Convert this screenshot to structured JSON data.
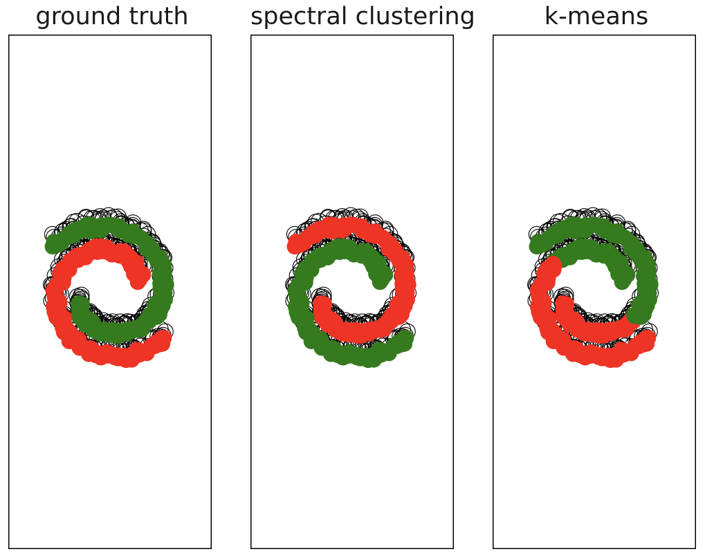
{
  "colors": {
    "class_a": "#ee3425",
    "class_b": "#357a1e",
    "outline": "#000000",
    "frame": "#000000"
  },
  "chart_data": [
    {
      "type": "scatter",
      "title": "ground truth",
      "xlim": [
        -2.2,
        2.2
      ],
      "ylim": [
        -5.6,
        5.6
      ],
      "grid": false,
      "ticks": false,
      "series": [
        {
          "color": "#357a1e",
          "spiral": {
            "start_angle_deg": 200,
            "end_angle_deg": 500,
            "r_start": 0.7,
            "r_end": 1.55
          }
        },
        {
          "color": "#ee3425",
          "spiral": {
            "start_angle_deg": 20,
            "end_angle_deg": 320,
            "r_start": 0.7,
            "r_end": 1.55
          }
        }
      ]
    },
    {
      "type": "scatter",
      "title": "spectral clustering",
      "xlim": [
        -2.2,
        2.2
      ],
      "ylim": [
        -5.6,
        5.6
      ],
      "grid": false,
      "ticks": false,
      "series": [
        {
          "color": "#ee3425",
          "spiral": {
            "start_angle_deg": 200,
            "end_angle_deg": 500,
            "r_start": 0.7,
            "r_end": 1.55
          }
        },
        {
          "color": "#357a1e",
          "spiral": {
            "start_angle_deg": 20,
            "end_angle_deg": 320,
            "r_start": 0.7,
            "r_end": 1.55
          }
        }
      ]
    },
    {
      "type": "scatter",
      "title": "k-means",
      "xlim": [
        -2.2,
        2.2
      ],
      "ylim": [
        -5.6,
        5.6
      ],
      "grid": false,
      "ticks": false,
      "partition": {
        "boundary_angle_deg": 145,
        "above_color": "#ee3425",
        "below_color": "#357a1e"
      },
      "series": [
        {
          "spiral": {
            "start_angle_deg": 200,
            "end_angle_deg": 500,
            "r_start": 0.7,
            "r_end": 1.55
          }
        },
        {
          "spiral": {
            "start_angle_deg": 20,
            "end_angle_deg": 320,
            "r_start": 0.7,
            "r_end": 1.55
          }
        }
      ]
    }
  ]
}
